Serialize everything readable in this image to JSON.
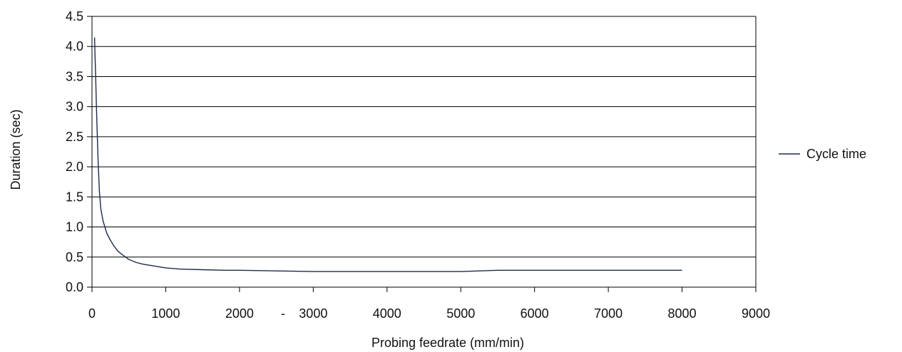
{
  "chart_data": {
    "type": "line",
    "title": "",
    "xlabel": "Probing feedrate (mm/min)",
    "ylabel": "Duration (sec)",
    "xlim": [
      0,
      9000
    ],
    "ylim": [
      0,
      4.5
    ],
    "x_ticks": [
      "0",
      "1000",
      "2000",
      "3000",
      "4000",
      "5000",
      "6000",
      "7000",
      "8000",
      "9000"
    ],
    "y_ticks": [
      "0.0",
      "0.5",
      "1.0",
      "1.5",
      "2.0",
      "2.5",
      "3.0",
      "3.5",
      "4.0",
      "4.5"
    ],
    "annotation": "-",
    "grid": "horizontal",
    "legend": {
      "position": "right",
      "entries": [
        "Cycle time"
      ]
    },
    "colors": {
      "series": "#1f2a4d",
      "grid": "#000000"
    },
    "series": [
      {
        "name": "Cycle time",
        "points": [
          [
            35,
            4.15
          ],
          [
            40,
            3.9
          ],
          [
            50,
            3.5
          ],
          [
            60,
            3.0
          ],
          [
            70,
            2.6
          ],
          [
            80,
            2.2
          ],
          [
            90,
            1.9
          ],
          [
            100,
            1.6
          ],
          [
            120,
            1.3
          ],
          [
            150,
            1.1
          ],
          [
            200,
            0.9
          ],
          [
            250,
            0.78
          ],
          [
            300,
            0.68
          ],
          [
            350,
            0.6
          ],
          [
            400,
            0.55
          ],
          [
            500,
            0.46
          ],
          [
            600,
            0.41
          ],
          [
            700,
            0.38
          ],
          [
            800,
            0.36
          ],
          [
            900,
            0.34
          ],
          [
            1000,
            0.32
          ],
          [
            1100,
            0.31
          ],
          [
            1200,
            0.3
          ],
          [
            1500,
            0.29
          ],
          [
            1800,
            0.28
          ],
          [
            2000,
            0.28
          ],
          [
            2500,
            0.27
          ],
          [
            3000,
            0.26
          ],
          [
            3500,
            0.26
          ],
          [
            4000,
            0.26
          ],
          [
            4500,
            0.26
          ],
          [
            5000,
            0.26
          ],
          [
            5500,
            0.28
          ],
          [
            6000,
            0.28
          ],
          [
            6500,
            0.28
          ],
          [
            7000,
            0.28
          ],
          [
            7500,
            0.28
          ],
          [
            8000,
            0.28
          ]
        ]
      }
    ]
  }
}
